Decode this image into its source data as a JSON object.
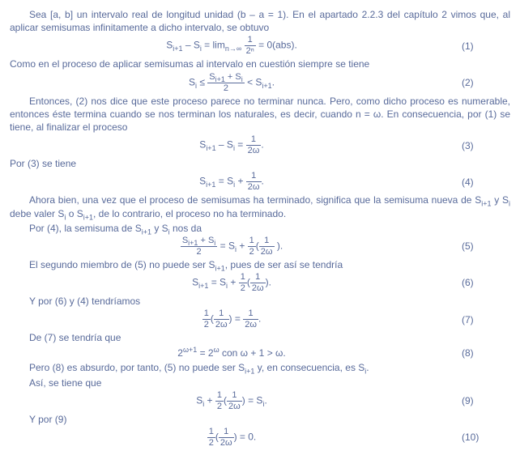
{
  "p1": "Sea [a, b] un intervalo real de longitud unidad (b – a = 1). En el apartado 2.2.3 del capítulo 2 vimos que, al aplicar semisumas infinitamente a dicho intervalo, se obtuvo",
  "eq1_left": "S",
  "eq1_sub1": "i+1",
  "eq1_mid": " – S",
  "eq1_sub2": "i",
  "eq1_eq": " = lim",
  "eq1_limsub": "n→∞",
  "eq1_frac_num": "1",
  "eq1_frac_den": "2ⁿ",
  "eq1_tail": " = 0(abs).",
  "eq1_num": "(1)",
  "p2": "Como en el proceso de aplicar semisumas al intervalo en cuestión siempre se tiene",
  "eq2_s": "S",
  "eq2_sub_i": "i",
  "eq2_le": " ≤ ",
  "eq2_frac_num_a": "S",
  "eq2_frac_num_a_sub": "i+1",
  "eq2_frac_num_plus": " + S",
  "eq2_frac_num_b_sub": "i",
  "eq2_frac_den": "2",
  "eq2_lt": " < S",
  "eq2_sub_ip1": "i+1",
  "eq2_dot": ".",
  "eq2_num": "(2)",
  "p3": "Entonces, (2) nos dice que este proceso parece no terminar nunca. Pero, como dicho proceso es numerable, entonces éste termina cuando se nos terminan los naturales, es decir, cuando n = ω. En consecuencia, por (1) se tiene, al finalizar el proceso",
  "eq3_lhs_a": "S",
  "eq3_lhs_a_sub": "i+1",
  "eq3_lhs_mid": " – S",
  "eq3_lhs_b_sub": "i",
  "eq3_eq": " = ",
  "eq3_frac_num": "1",
  "eq3_frac_den": "2ω",
  "eq3_dot": ".",
  "eq3_num": "(3)",
  "p4": "Por (3) se tiene",
  "eq4_lhs_a": "S",
  "eq4_lhs_a_sub": "i+1",
  "eq4_eq": " = S",
  "eq4_rhs_sub": "i",
  "eq4_plus": " + ",
  "eq4_frac_num": "1",
  "eq4_frac_den": "2ω",
  "eq4_dot": ".",
  "eq4_num": "(4)",
  "p5": "Ahora bien, una vez que el proceso de semisumas ha terminado, significa que la semisuma nueva de S",
  "p5_sub1": "i+1",
  "p5_b": " y S",
  "p5_sub2": "i",
  "p5_c": " debe valer S",
  "p5_sub3": "i",
  "p5_d": " o S",
  "p5_sub4": "i+1",
  "p5_e": ", de lo contrario, el proceso no ha terminado.",
  "p6a": "Por (4), la semisuma de S",
  "p6a_sub1": "i+1",
  "p6b": " y S",
  "p6b_sub": "i",
  "p6c": " nos da",
  "eq5_frac1_num_a": "S",
  "eq5_frac1_num_a_sub": "i+1",
  "eq5_frac1_num_plus": " + S",
  "eq5_frac1_num_b_sub": "i",
  "eq5_frac1_den": "2",
  "eq5_eq": " = S",
  "eq5_si_sub": "i",
  "eq5_plus": " + ",
  "eq5_half_num": "1",
  "eq5_half_den": "2",
  "eq5_open": "(",
  "eq5_inner_num": "1",
  "eq5_inner_den": "2ω",
  "eq5_close": " ).",
  "eq5_num": "(5)",
  "p7a": "El segundo miembro de (5) no puede ser S",
  "p7a_sub": "i+1",
  "p7b": ", pues de ser así se tendría",
  "eq6_lhs": "S",
  "eq6_lhs_sub": "i+1",
  "eq6_eq": " = S",
  "eq6_si_sub": "i",
  "eq6_plus": " + ",
  "eq6_half_num": "1",
  "eq6_half_den": "2",
  "eq6_open": "(",
  "eq6_inner_num": "1",
  "eq6_inner_den": "2ω",
  "eq6_close": ").",
  "eq6_num": "(6)",
  "p8": "Y por (6) y (4) tendríamos",
  "eq7_half_num": "1",
  "eq7_half_den": "2",
  "eq7_open": "(",
  "eq7_inner_num": "1",
  "eq7_inner_den": "2ω",
  "eq7_close": ") = ",
  "eq7_r_num": "1",
  "eq7_r_den": "2ω",
  "eq7_dot": ".",
  "eq7_num": "(7)",
  "p9": "De (7) se tendría que",
  "eq8_lhs": "2",
  "eq8_lhs_sup": "ω+1",
  "eq8_eq": " = 2",
  "eq8_rhs_sup": "ω",
  "eq8_tail": " con ω + 1 > ω.",
  "eq8_num": "(8)",
  "p10a": "Pero (8) es absurdo, por tanto, (5) no puede ser S",
  "p10a_sub": "i+1",
  "p10b": " y, en consecuencia, es S",
  "p10b_sub": "i",
  "p10c": ".",
  "p11": "Así, se tiene que",
  "eq9_lhs": "S",
  "eq9_lhs_sub": "i",
  "eq9_plus": " + ",
  "eq9_half_num": "1",
  "eq9_half_den": "2",
  "eq9_open": "(",
  "eq9_inner_num": "1",
  "eq9_inner_den": "2ω",
  "eq9_close": ") = S",
  "eq9_rhs_sub": "i",
  "eq9_dot": ".",
  "eq9_num": "(9)",
  "p12": "Y por (9)",
  "eq10_half_num": "1",
  "eq10_half_den": "2",
  "eq10_open": "(",
  "eq10_inner_num": "1",
  "eq10_inner_den": "2ω",
  "eq10_close": ") = 0.",
  "eq10_num": "(10)"
}
